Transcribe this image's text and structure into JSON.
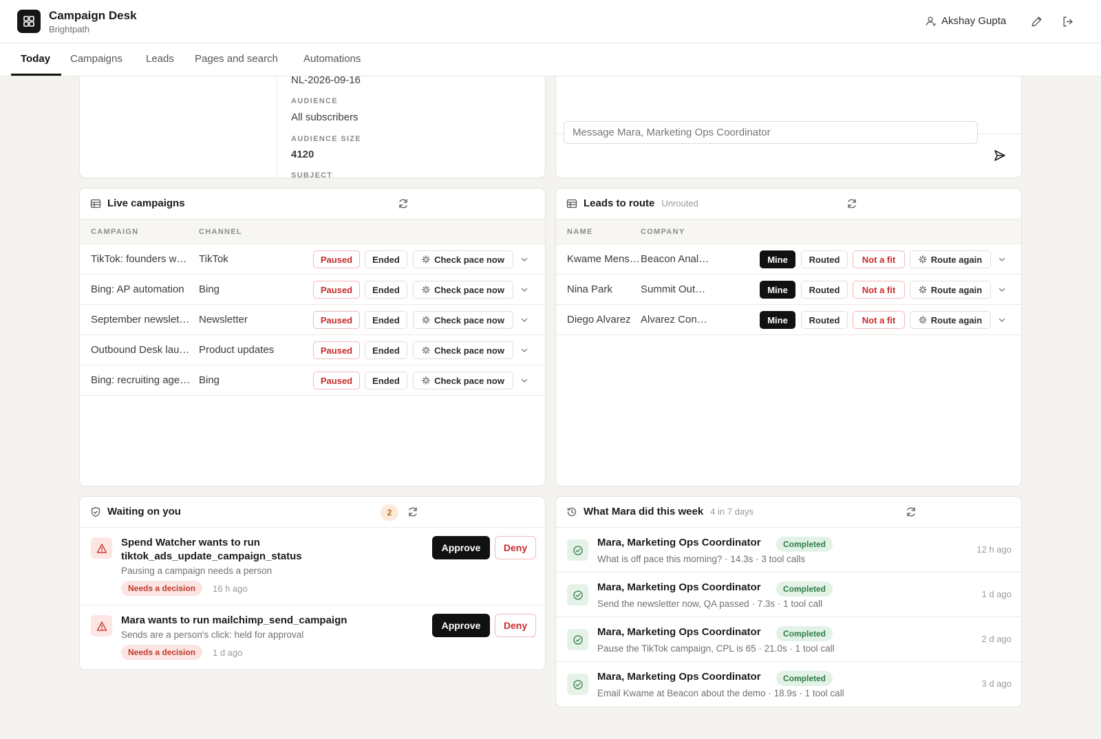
{
  "header": {
    "app_title": "Campaign Desk",
    "app_subtitle": "Brightpath",
    "user_name": "Akshay Gupta"
  },
  "tabs": [
    {
      "label": "Today",
      "active": true
    },
    {
      "label": "Campaigns"
    },
    {
      "label": "Leads"
    },
    {
      "label": "Pages and search"
    },
    {
      "label": "Automations"
    }
  ],
  "detail_panel": {
    "id_value": "NL-2026-09-16",
    "audience_label": "AUDIENCE",
    "audience_value": "All subscribers",
    "audience_size_label": "AUDIENCE SIZE",
    "audience_size_value": "4120",
    "subject_label": "SUBJECT"
  },
  "chat": {
    "placeholder": "Message Mara, Marketing Ops Coordinator"
  },
  "live_campaigns": {
    "title": "Live campaigns",
    "columns": [
      "CAMPAIGN",
      "CHANNEL"
    ],
    "rows": [
      {
        "campaign": "TikTok: founders w…",
        "channel": "TikTok"
      },
      {
        "campaign": "Bing: AP automation",
        "channel": "Bing"
      },
      {
        "campaign": "September newslet…",
        "channel": "Newsletter"
      },
      {
        "campaign": "Outbound Desk lau…",
        "channel": "Product updates"
      },
      {
        "campaign": "Bing: recruiting age…",
        "channel": "Bing"
      }
    ],
    "actions": {
      "paused": "Paused",
      "ended": "Ended",
      "check": "Check pace now"
    }
  },
  "leads": {
    "title": "Leads to route",
    "subtitle": "Unrouted",
    "columns": [
      "NAME",
      "COMPANY"
    ],
    "rows": [
      {
        "name": "Kwame Mens…",
        "company": "Beacon Anal…"
      },
      {
        "name": "Nina Park",
        "company": "Summit Out…"
      },
      {
        "name": "Diego Alvarez",
        "company": "Alvarez Con…"
      }
    ],
    "actions": {
      "mine": "Mine",
      "routed": "Routed",
      "not_fit": "Not a fit",
      "route_again": "Route again"
    }
  },
  "waiting": {
    "title": "Waiting on you",
    "count": "2",
    "approve_label": "Approve",
    "deny_label": "Deny",
    "items": [
      {
        "title": "Spend Watcher wants to run tiktok_ads_update_campaign_status",
        "subtitle": "Pausing a campaign needs a person",
        "badge": "Needs a decision",
        "ago": "16 h ago"
      },
      {
        "title": "Mara wants to run mailchimp_send_campaign",
        "subtitle": "Sends are a person's click: held for approval",
        "badge": "Needs a decision",
        "ago": "1 d ago"
      }
    ]
  },
  "activity": {
    "title": "What Mara did this week",
    "subtitle": "4 in 7 days",
    "items": [
      {
        "who": "Mara, Marketing Ops Coordinator",
        "status": "Completed",
        "detail": "What is off pace this morning? · 14.3s · 3 tool calls",
        "ago": "12 h ago"
      },
      {
        "who": "Mara, Marketing Ops Coordinator",
        "status": "Completed",
        "detail": "Send the newsletter now, QA passed · 7.3s · 1 tool call",
        "ago": "1 d ago"
      },
      {
        "who": "Mara, Marketing Ops Coordinator",
        "status": "Completed",
        "detail": "Pause the TikTok campaign, CPL is 65 · 21.0s · 1 tool call",
        "ago": "2 d ago"
      },
      {
        "who": "Mara, Marketing Ops Coordinator",
        "status": "Completed",
        "detail": "Email Kwame at Beacon about the demo · 18.9s · 1 tool call",
        "ago": "3 d ago"
      }
    ]
  }
}
